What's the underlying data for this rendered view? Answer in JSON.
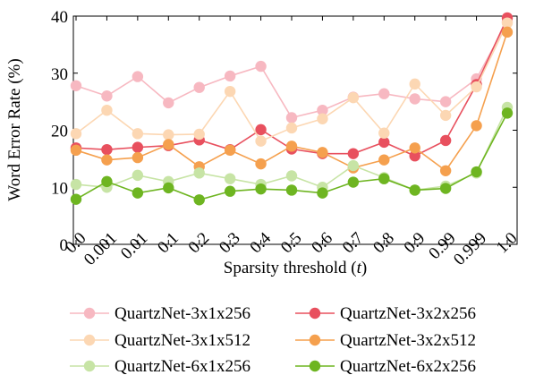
{
  "chart_data": {
    "type": "line",
    "xlabel_text": "Sparsity threshold (",
    "xlabel_var": "t",
    "xlabel_close": ")",
    "ylabel": "Word Error Rate (%)",
    "ylim": [
      0,
      40
    ],
    "yticks": [
      0,
      10,
      20,
      30,
      40
    ],
    "categories": [
      "0.0",
      "0.001",
      "0.01",
      "0.1",
      "0.2",
      "0.3",
      "0.4",
      "0.5",
      "0.6",
      "0.7",
      "0.8",
      "0.9",
      "0.99",
      "0.999",
      "1.0"
    ],
    "grid": false,
    "legend_position": "bottom",
    "series": [
      {
        "name": "QuartzNet-3x1x256",
        "color": "#f7b8c1",
        "values": [
          27.8,
          26.0,
          29.4,
          24.8,
          27.5,
          29.5,
          31.2,
          22.2,
          23.5,
          25.8,
          26.4,
          25.5,
          25.0,
          29.0,
          39.0
        ]
      },
      {
        "name": "QuartzNet-3x2x256",
        "color": "#e8505e",
        "values": [
          16.9,
          16.6,
          17.0,
          17.3,
          18.3,
          16.6,
          20.1,
          16.7,
          15.9,
          15.9,
          17.9,
          15.5,
          18.2,
          28.0,
          39.7
        ]
      },
      {
        "name": "QuartzNet-3x1x512",
        "color": "#fcd7b3",
        "values": [
          19.4,
          23.5,
          19.4,
          19.2,
          19.3,
          26.8,
          18.1,
          20.4,
          22.0,
          25.7,
          19.5,
          28.1,
          22.6,
          27.6,
          38.8
        ]
      },
      {
        "name": "QuartzNet-3x2x512",
        "color": "#f5a04e",
        "values": [
          16.5,
          14.8,
          15.2,
          17.5,
          13.6,
          16.5,
          14.1,
          17.2,
          16.1,
          13.4,
          14.8,
          16.9,
          12.9,
          20.8,
          37.2
        ]
      },
      {
        "name": "QuartzNet-6x1x256",
        "color": "#c7e4a5",
        "values": [
          10.5,
          10.0,
          12.1,
          11.0,
          12.5,
          11.5,
          10.5,
          12.0,
          10.0,
          13.8,
          11.7,
          9.5,
          10.2,
          12.5,
          24.0
        ]
      },
      {
        "name": "QuartzNet-6x2x256",
        "color": "#6eb521",
        "values": [
          7.9,
          11.0,
          9.0,
          9.9,
          7.8,
          9.3,
          9.7,
          9.5,
          9.0,
          10.9,
          11.5,
          9.5,
          9.8,
          12.7,
          23.0
        ]
      }
    ]
  }
}
